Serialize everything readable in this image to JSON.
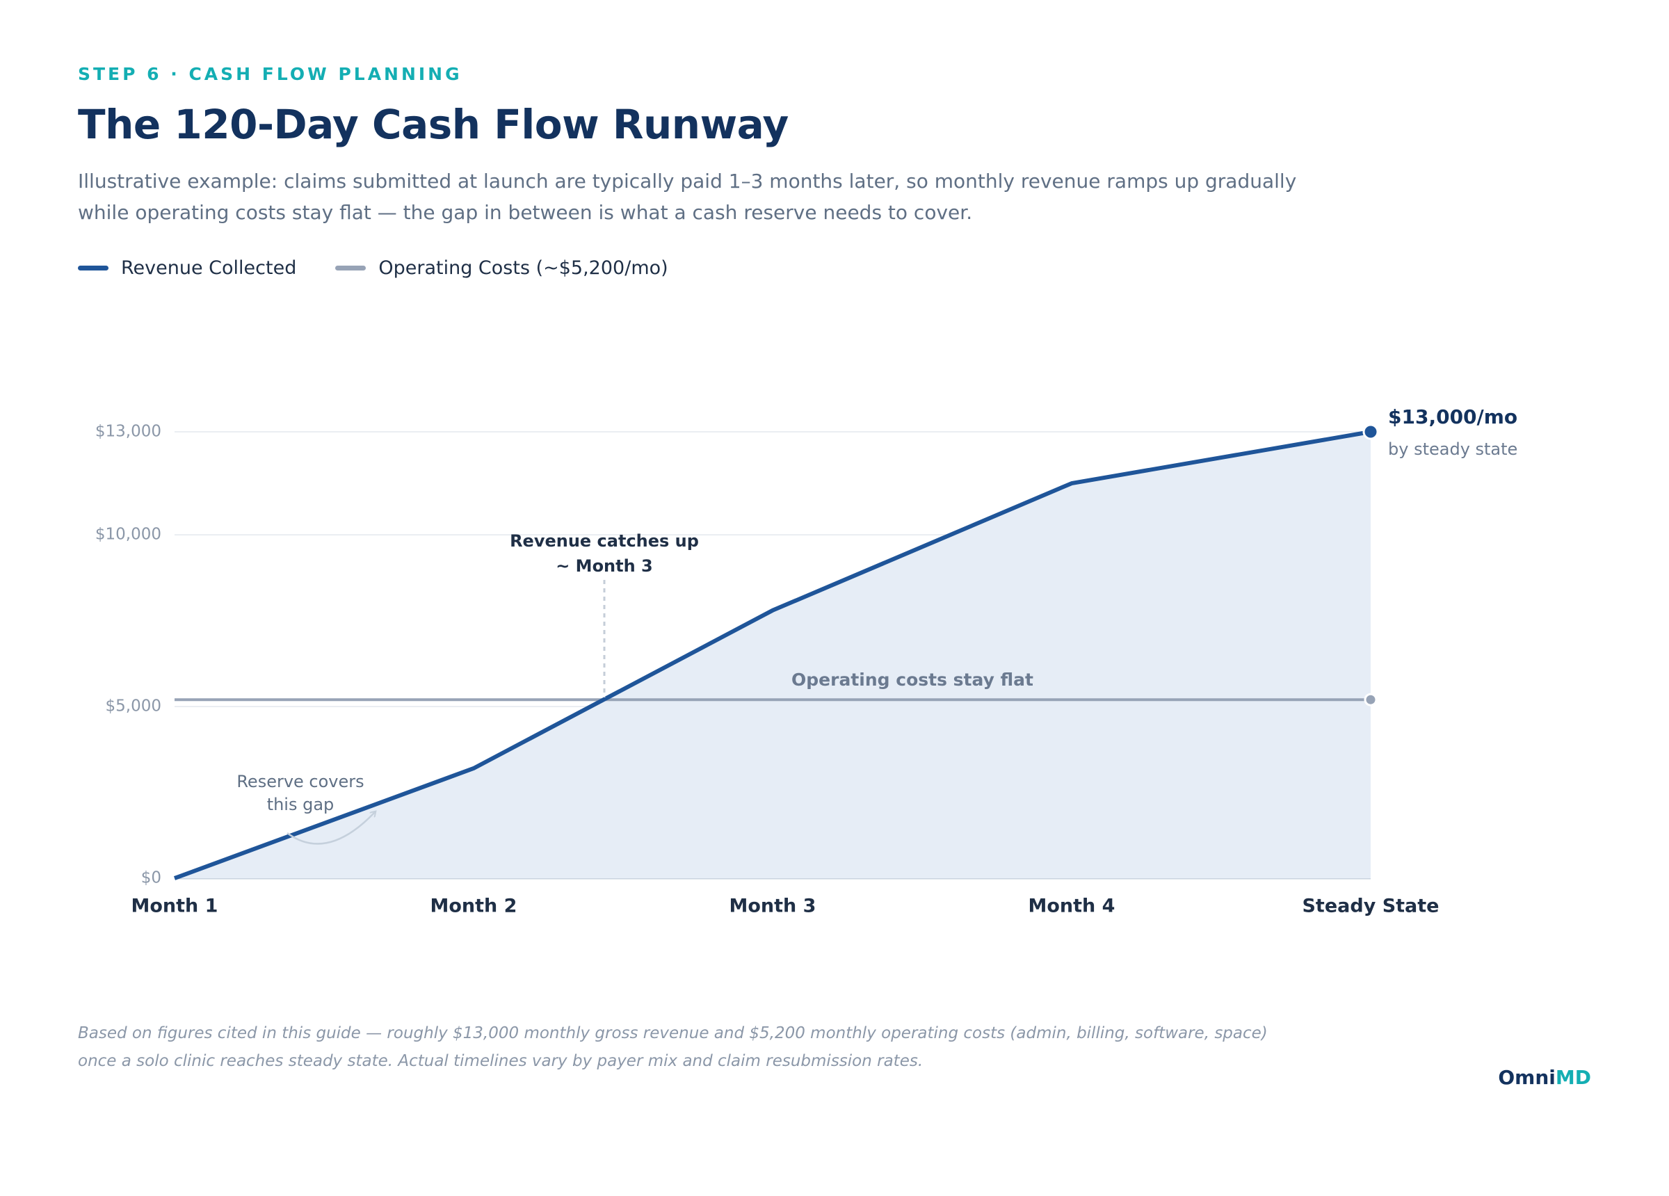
{
  "eyebrow": "STEP 6 · CASH FLOW PLANNING",
  "footnote": "Based on figures cited in this guide — roughly $13,000 monthly gross revenue and $5,200 monthly operating costs (admin, billing, software, space) once a solo clinic reaches steady state. Actual timelines vary by payer mix and claim resubmission rates.",
  "brand": {
    "first": "Omni",
    "second": "MD"
  },
  "chart_data": {
    "type": "line",
    "title": "The 120-Day Cash Flow Runway",
    "subtitle": "Illustrative example: claims submitted at launch are typically paid 1–3 months later, so monthly revenue ramps up gradually while operating costs stay flat — the gap in between is what a cash reserve needs to cover.",
    "categories": [
      "Month 1",
      "Month 2",
      "Month 3",
      "Month 4",
      "Steady State"
    ],
    "series": [
      {
        "name": "Revenue Collected",
        "color": "#1f5599",
        "values": [
          0,
          3200,
          7800,
          11500,
          13000
        ],
        "value_labels": [
          null,
          null,
          null,
          null,
          "$13,000/mo"
        ],
        "area_color": "#e6edf6"
      },
      {
        "name": "Operating Costs (~$5,200/mo)",
        "color": "#97a3b6",
        "values": [
          5200,
          5200,
          5200,
          5200,
          5200
        ]
      }
    ],
    "ylim": [
      0,
      13000
    ],
    "yticks": [
      {
        "value": 0,
        "label": "$0"
      },
      {
        "value": 5000,
        "label": "$5,000"
      },
      {
        "value": 10000,
        "label": "$10,000"
      },
      {
        "value": 13000,
        "label": "$13,000"
      }
    ],
    "grid": true,
    "annotations": {
      "catch_up": [
        "Revenue catches up",
        "~ Month 3"
      ],
      "flat": "Operating costs stay flat",
      "gap": [
        "Reserve covers",
        "this gap"
      ],
      "end_note": "by steady state"
    }
  }
}
